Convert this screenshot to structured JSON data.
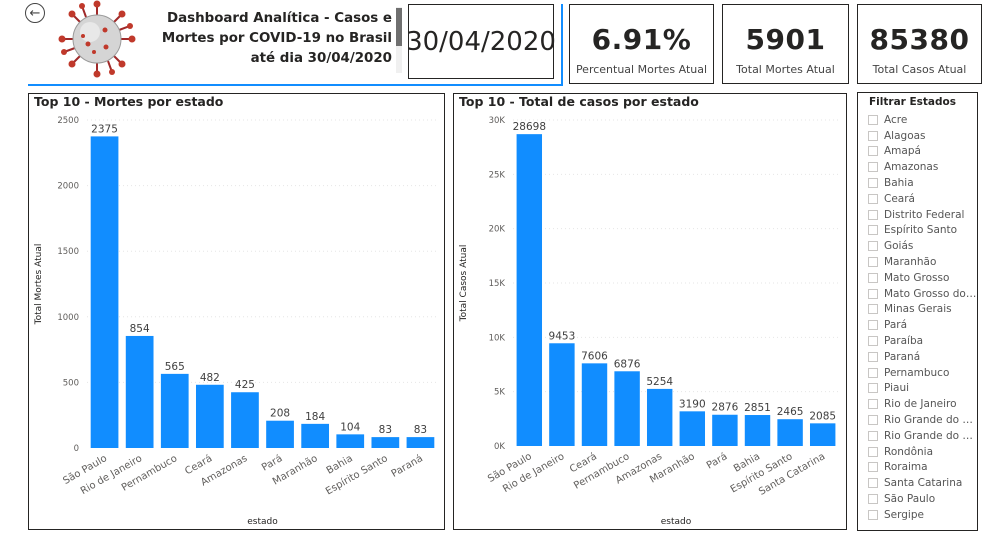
{
  "header": {
    "title": "Dashboard Analítica - Casos e Mortes por COVID-19 no Brasil até dia 30/04/2020",
    "date": "30/04/2020"
  },
  "kpis": [
    {
      "value": "6.91%",
      "label": "Percentual Mortes Atual"
    },
    {
      "value": "5901",
      "label": "Total Mortes Atual"
    },
    {
      "value": "85380",
      "label": "Total Casos Atual"
    }
  ],
  "colors": {
    "bar": "#118dff",
    "accent": "#118dff"
  },
  "slicer": {
    "title": "Filtrar Estados",
    "items": [
      "Acre",
      "Alagoas",
      "Amapá",
      "Amazonas",
      "Bahia",
      "Ceará",
      "Distrito Federal",
      "Espírito Santo",
      "Goiás",
      "Maranhão",
      "Mato Grosso",
      "Mato Grosso do Sul",
      "Minas Gerais",
      "Pará",
      "Paraíba",
      "Paraná",
      "Pernambuco",
      "Piaui",
      "Rio de Janeiro",
      "Rio Grande do Norte",
      "Rio Grande do Sul",
      "Rondônia",
      "Roraima",
      "Santa Catarina",
      "São Paulo",
      "Sergipe"
    ]
  },
  "chart_data": [
    {
      "type": "bar",
      "title": "Top 10 - Mortes por estado",
      "xlabel": "estado",
      "ylabel": "Total Mortes Atual",
      "ylim": [
        0,
        2500
      ],
      "yticks": [
        0,
        500,
        1000,
        1500,
        2000,
        2500
      ],
      "ytick_labels": [
        "0",
        "500",
        "1000",
        "1500",
        "2000",
        "2500"
      ],
      "categories": [
        "São Paulo",
        "Rio de Janeiro",
        "Pernambuco",
        "Ceará",
        "Amazonas",
        "Pará",
        "Maranhão",
        "Bahia",
        "Espírito Santo",
        "Paraná"
      ],
      "values": [
        2375,
        854,
        565,
        482,
        425,
        208,
        184,
        104,
        83,
        83
      ]
    },
    {
      "type": "bar",
      "title": "Top 10 - Total de casos por estado",
      "xlabel": "estado",
      "ylabel": "Total Casos Atual",
      "ylim": [
        0,
        30000
      ],
      "yticks": [
        0,
        5000,
        10000,
        15000,
        20000,
        25000,
        30000
      ],
      "ytick_labels": [
        "0K",
        "5K",
        "10K",
        "15K",
        "20K",
        "25K",
        "30K"
      ],
      "categories": [
        "São Paulo",
        "Rio de Janeiro",
        "Ceará",
        "Pernambuco",
        "Amazonas",
        "Maranhão",
        "Pará",
        "Bahia",
        "Espírito Santo",
        "Santa Catarina"
      ],
      "values": [
        28698,
        9453,
        7606,
        6876,
        5254,
        3190,
        2876,
        2851,
        2465,
        2085
      ]
    }
  ]
}
